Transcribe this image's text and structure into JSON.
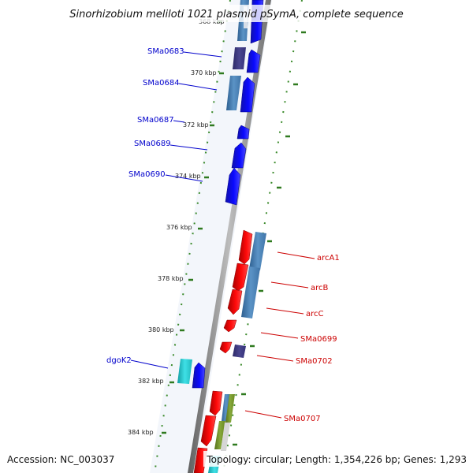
{
  "title": "Sinorhizobium meliloti 1021 plasmid pSymA, complete sequence",
  "footer": {
    "accession": "Accession: NC_003037",
    "stats": "Topology: circular; Length: 1,354,226 bp; Genes: 1,293"
  },
  "colors": {
    "forward_strand": "#0000ee",
    "reverse_strand": "#ee0000",
    "cog_blue": "#4a7fb0",
    "cog_purple": "#3d3a80",
    "cog_cyan": "#22c6cc",
    "cog_olive": "#6f8e1f",
    "backbone": "#808080",
    "tick": "#2f7a1f"
  },
  "kbp_ticks": [
    "368 kbp",
    "370 kbp",
    "372 kbp",
    "374 kbp",
    "376 kbp",
    "378 kbp",
    "380 kbp",
    "382 kbp",
    "384 kbp"
  ],
  "genes_left": [
    "SMa0683",
    "SMa0684",
    "SMa0687",
    "SMa0689",
    "SMa0690",
    "dgoK2"
  ],
  "genes_right": [
    "arcA1",
    "arcB",
    "arcC",
    "SMa0699",
    "SMa0702",
    "SMa0707"
  ]
}
